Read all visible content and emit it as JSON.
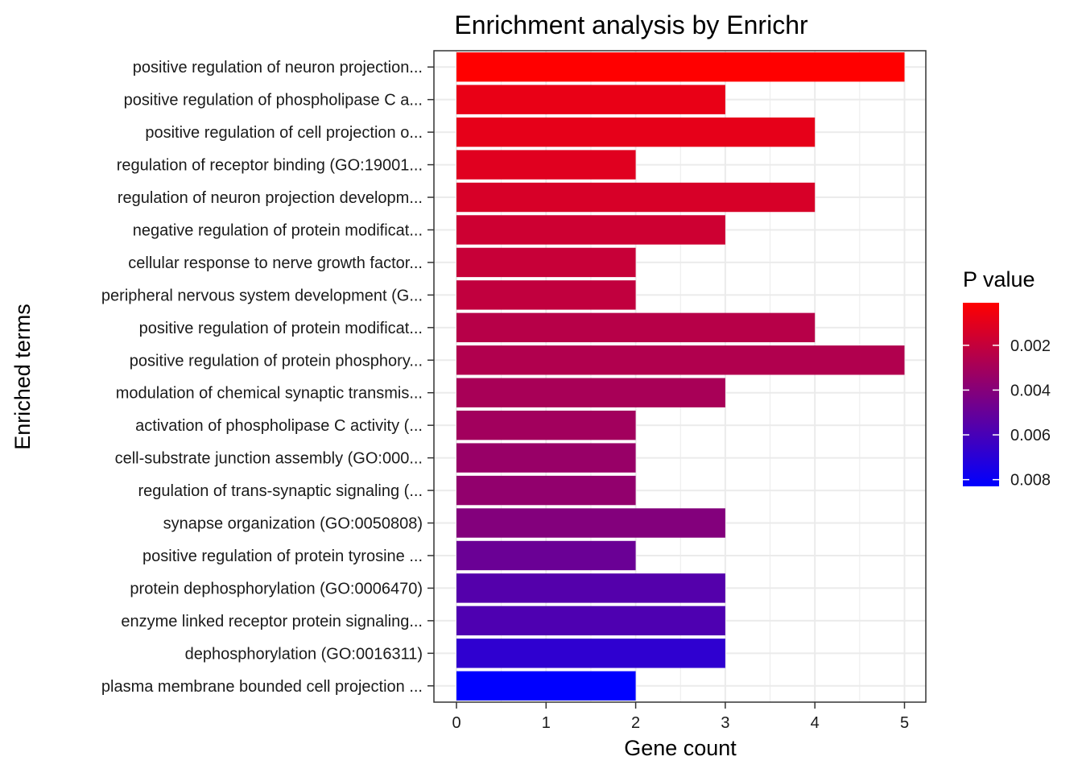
{
  "chart_data": {
    "type": "bar",
    "orientation": "horizontal",
    "title": "Enrichment analysis by Enrichr",
    "xlabel": "Gene count",
    "ylabel": "Enriched terms",
    "xlim": [
      0,
      5.25
    ],
    "x_ticks": [
      0,
      1,
      2,
      3,
      4,
      5
    ],
    "grid": true,
    "categories": [
      "positive regulation of neuron projection...",
      "positive regulation of phospholipase C a...",
      "positive regulation of cell projection o...",
      "regulation of receptor binding (GO:19001...",
      "regulation of neuron projection developm...",
      "negative regulation of protein modificat...",
      "cellular response to nerve growth factor...",
      "peripheral nervous system development (G...",
      "positive regulation of protein modificat...",
      "positive regulation of protein phosphory...",
      "modulation of chemical synaptic transmis...",
      "activation of phospholipase C activity (...",
      "cell-substrate junction assembly (GO:000...",
      "regulation of trans-synaptic signaling (...",
      "synapse organization (GO:0050808)",
      "positive regulation of protein tyrosine ...",
      "protein dephosphorylation (GO:0006470)",
      "enzyme linked receptor protein signaling...",
      "dephosphorylation (GO:0016311)",
      "plasma membrane bounded cell projection ..."
    ],
    "values": [
      5,
      3,
      4,
      2,
      4,
      3,
      2,
      2,
      4,
      5,
      3,
      2,
      2,
      2,
      3,
      2,
      3,
      3,
      3,
      2
    ],
    "p_values": [
      0.0001,
      0.0008,
      0.0009,
      0.0011,
      0.0014,
      0.0017,
      0.0019,
      0.0021,
      0.0024,
      0.0026,
      0.0029,
      0.0031,
      0.0034,
      0.0036,
      0.0041,
      0.0049,
      0.0056,
      0.0058,
      0.0068,
      0.0083
    ],
    "legend": {
      "title": "P value",
      "position": "right",
      "ticks": [
        0.002,
        0.004,
        0.006,
        0.008
      ],
      "tick_labels": [
        "0.002",
        "0.004",
        "0.006",
        "0.008"
      ],
      "range": [
        0.0001,
        0.0083
      ],
      "low_color": "#FF0000",
      "high_color": "#0000FF"
    },
    "panel_border_color": "#333333",
    "grid_color": "#ebebeb"
  }
}
